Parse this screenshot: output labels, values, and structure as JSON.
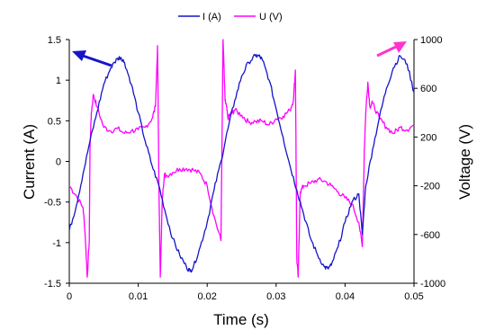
{
  "chart_data": {
    "type": "line",
    "xlabel": "Time (s)",
    "ylabel_left": "Current (A)",
    "ylabel_right": "Voltage (V)",
    "x_ticks": [
      "0",
      "0.01",
      "0.02",
      "0.03",
      "0.04",
      "0.05"
    ],
    "y_left_ticks": [
      "-1.5",
      "-1",
      "-0.5",
      "0",
      "0.5",
      "1",
      "1.5"
    ],
    "y_right_ticks": [
      "-1000",
      "-600",
      "-200",
      "200",
      "600",
      "1000"
    ],
    "xlim": [
      0,
      0.05
    ],
    "ylim_left": [
      -1.5,
      1.5
    ],
    "ylim_right": [
      -1000,
      1000
    ],
    "legend_position": "top-center",
    "grid": false,
    "series": [
      {
        "name": "I (A)",
        "axis": "left",
        "color": "#1515c8",
        "x": [
          0,
          0.001,
          0.002,
          0.003,
          0.004,
          0.005,
          0.006,
          0.007,
          0.0075,
          0.008,
          0.009,
          0.01,
          0.011,
          0.012,
          0.013,
          0.014,
          0.015,
          0.016,
          0.017,
          0.0175,
          0.018,
          0.019,
          0.02,
          0.021,
          0.022,
          0.023,
          0.024,
          0.025,
          0.026,
          0.027,
          0.0275,
          0.028,
          0.029,
          0.03,
          0.031,
          0.032,
          0.033,
          0.034,
          0.035,
          0.036,
          0.037,
          0.0375,
          0.038,
          0.039,
          0.04,
          0.041,
          0.042,
          0.0425,
          0.043,
          0.044,
          0.045,
          0.046,
          0.047,
          0.048,
          0.049,
          0.05
        ],
        "values": [
          -0.85,
          -0.55,
          -0.15,
          0.25,
          0.6,
          0.95,
          1.15,
          1.27,
          1.28,
          1.22,
          0.95,
          0.6,
          0.25,
          -0.05,
          -0.3,
          -0.65,
          -0.95,
          -1.15,
          -1.3,
          -1.35,
          -1.3,
          -1.05,
          -0.75,
          -0.35,
          0.0,
          0.4,
          0.75,
          1.05,
          1.22,
          1.3,
          1.3,
          1.25,
          1.0,
          0.65,
          0.3,
          -0.05,
          -0.35,
          -0.65,
          -0.95,
          -1.15,
          -1.3,
          -1.32,
          -1.28,
          -1.05,
          -0.75,
          -0.5,
          -0.4,
          -0.9,
          -0.3,
          0.15,
          0.55,
          0.9,
          1.15,
          1.3,
          1.2,
          0.85
        ]
      },
      {
        "name": "U (V)",
        "axis": "right",
        "color": "#ff00ff",
        "x": [
          0,
          0.001,
          0.002,
          0.0023,
          0.0026,
          0.0029,
          0.003,
          0.0032,
          0.0035,
          0.004,
          0.005,
          0.006,
          0.007,
          0.008,
          0.009,
          0.01,
          0.011,
          0.012,
          0.0125,
          0.0128,
          0.013,
          0.0132,
          0.0135,
          0.0138,
          0.014,
          0.015,
          0.016,
          0.017,
          0.018,
          0.019,
          0.02,
          0.021,
          0.022,
          0.0223,
          0.0226,
          0.0228,
          0.023,
          0.0233,
          0.0236,
          0.024,
          0.025,
          0.026,
          0.027,
          0.028,
          0.029,
          0.03,
          0.031,
          0.032,
          0.0325,
          0.0328,
          0.033,
          0.0332,
          0.0335,
          0.034,
          0.035,
          0.036,
          0.037,
          0.038,
          0.039,
          0.04,
          0.041,
          0.042,
          0.0425,
          0.0428,
          0.043,
          0.0433,
          0.0436,
          0.044,
          0.045,
          0.046,
          0.047,
          0.048,
          0.049,
          0.05
        ],
        "values": [
          -200,
          -280,
          -380,
          -600,
          -950,
          -650,
          100,
          400,
          550,
          450,
          280,
          250,
          270,
          230,
          250,
          260,
          280,
          350,
          450,
          950,
          -200,
          -950,
          -300,
          -100,
          -120,
          -90,
          -60,
          -60,
          -70,
          -100,
          -200,
          -450,
          -650,
          1000,
          500,
          450,
          350,
          380,
          400,
          420,
          380,
          320,
          330,
          330,
          300,
          350,
          370,
          420,
          500,
          750,
          -800,
          -950,
          -250,
          -200,
          -180,
          -150,
          -160,
          -200,
          -250,
          -300,
          -350,
          -500,
          -700,
          100,
          400,
          650,
          450,
          480,
          350,
          280,
          230,
          280,
          260,
          300
        ]
      }
    ]
  }
}
